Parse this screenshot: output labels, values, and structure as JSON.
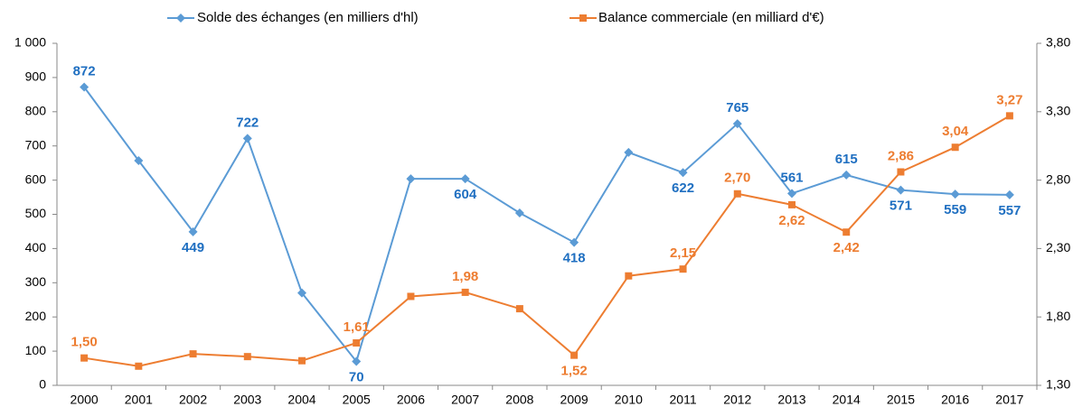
{
  "chart_data": {
    "type": "line",
    "categories": [
      "2000",
      "2001",
      "2002",
      "2003",
      "2004",
      "2005",
      "2006",
      "2007",
      "2008",
      "2009",
      "2010",
      "2011",
      "2012",
      "2013",
      "2014",
      "2015",
      "2016",
      "2017"
    ],
    "series": [
      {
        "name": "Solde des échanges (en milliers d'hl)",
        "color": "#5b9bd5",
        "marker": "diamond",
        "values": [
          872,
          657,
          449,
          722,
          270,
          70,
          604,
          604,
          504,
          418,
          681,
          622,
          765,
          561,
          615,
          571,
          559,
          557
        ],
        "value_labels": [
          "872",
          null,
          "449",
          "722",
          null,
          "70",
          null,
          "604",
          null,
          "418",
          null,
          "622",
          "765",
          "561",
          "615",
          "571",
          "559",
          "557"
        ]
      },
      {
        "name": "Balance commerciale (en milliard d'€)",
        "color": "#ed7d31",
        "marker": "square",
        "axis": "y2",
        "values": [
          1.5,
          1.44,
          1.53,
          1.51,
          1.48,
          1.61,
          1.95,
          1.98,
          1.86,
          1.52,
          2.1,
          2.15,
          2.7,
          2.62,
          2.42,
          2.86,
          3.04,
          3.27
        ],
        "value_labels": [
          "1,50",
          null,
          null,
          null,
          null,
          "1,61",
          null,
          "1,98",
          null,
          "1,52",
          null,
          "2,15",
          "2,70",
          "2,62",
          "2,42",
          "2,86",
          "3,04",
          "3,27"
        ]
      }
    ],
    "ylim": [
      0,
      1000
    ],
    "yticks": [
      0,
      100,
      200,
      300,
      400,
      500,
      600,
      700,
      800,
      900,
      {
        "value": 1000,
        "label": "1 000"
      }
    ],
    "y2lim": [
      1.3,
      3.8
    ],
    "y2ticks": [
      {
        "value": 1.3,
        "label": "1,30"
      },
      {
        "value": 1.8,
        "label": "1,80"
      },
      {
        "value": 2.3,
        "label": "2,30"
      },
      {
        "value": 2.8,
        "label": "2,80"
      },
      {
        "value": 3.3,
        "label": "3,30"
      },
      {
        "value": 3.8,
        "label": "3,80"
      }
    ],
    "grid": false,
    "legend": "top"
  }
}
